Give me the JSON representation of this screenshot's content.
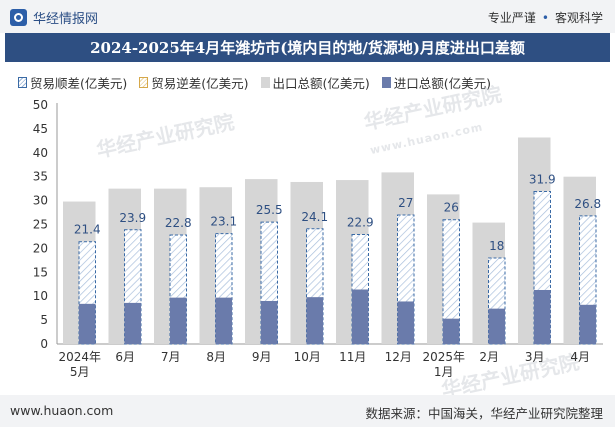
{
  "header": {
    "brand": "华经情报网",
    "tagline_left": "专业严谨",
    "tagline_sep": "•",
    "tagline_right": "客观科学"
  },
  "title": "2024-2025年4月年潍坊市(境内目的地/货源地)月度进出口差额",
  "legend": {
    "surplus": "贸易顺差(亿美元)",
    "deficit": "贸易逆差(亿美元)",
    "export": "出口总额(亿美元)",
    "import": "进口总额(亿美元)"
  },
  "colors": {
    "export": "#d6d6d6",
    "import": "#6a7bab",
    "surplus_border": "#3a6aa5",
    "title_bg": "#2e4f82"
  },
  "watermark": {
    "text": "华经产业研究院",
    "url": "www.huaon.com"
  },
  "chart_data": {
    "type": "bar",
    "categories": [
      "2024年\n5月",
      "6月",
      "7月",
      "8月",
      "9月",
      "10月",
      "11月",
      "12月",
      "2025年\n1月",
      "2月",
      "3月",
      "4月"
    ],
    "ylim": [
      0,
      50
    ],
    "yticks": [
      0,
      5,
      10,
      15,
      20,
      25,
      30,
      35,
      40,
      45,
      50
    ],
    "series": [
      {
        "name": "出口总额(亿美元)",
        "values": [
          29.8,
          32.5,
          32.5,
          32.8,
          34.5,
          33.9,
          34.3,
          35.9,
          31.3,
          25.4,
          43.2,
          35.0
        ]
      },
      {
        "name": "进口总额(亿美元)",
        "values": [
          8.4,
          8.6,
          9.7,
          9.7,
          9.0,
          9.8,
          11.4,
          8.9,
          5.3,
          7.4,
          11.3,
          8.2
        ]
      },
      {
        "name": "贸易顺差(亿美元)",
        "values": [
          21.4,
          23.9,
          22.8,
          23.1,
          25.5,
          24.1,
          22.9,
          27,
          26,
          18,
          31.9,
          26.8
        ]
      }
    ],
    "labels": [
      "21.4",
      "23.9",
      "22.8",
      "23.1",
      "25.5",
      "24.1",
      "22.9",
      "27",
      "26",
      "18",
      "31.9",
      "26.8"
    ]
  },
  "footer": {
    "url": "www.huaon.com",
    "source": "数据来源：中国海关，华经产业研究院整理"
  }
}
